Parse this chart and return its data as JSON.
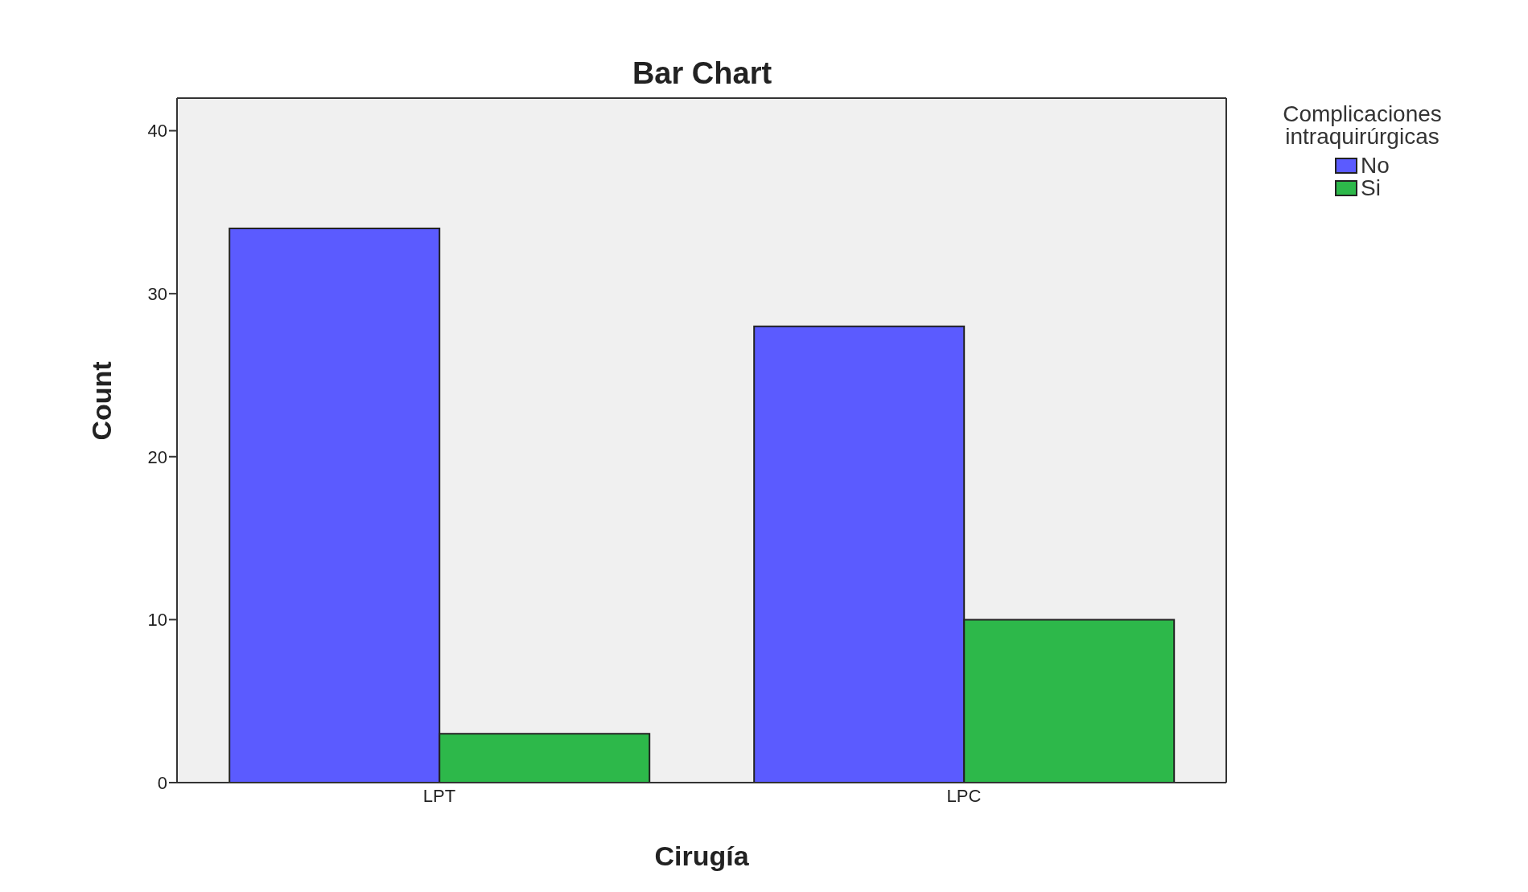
{
  "chart_data": {
    "type": "bar",
    "title": "Bar Chart",
    "xlabel": "Cirugía",
    "ylabel": "Count",
    "legend_title": "Complicaciones intraquirúrgicas",
    "categories": [
      "LPT",
      "LPC"
    ],
    "series": [
      {
        "name": "No",
        "color": "#5b5bff",
        "values": [
          34,
          28
        ]
      },
      {
        "name": "Si",
        "color": "#2db84a",
        "values": [
          3,
          10
        ]
      }
    ],
    "ylim": [
      0,
      42
    ],
    "yticks": [
      0,
      10,
      20,
      30,
      40
    ],
    "grid": false,
    "legend": "top right"
  }
}
